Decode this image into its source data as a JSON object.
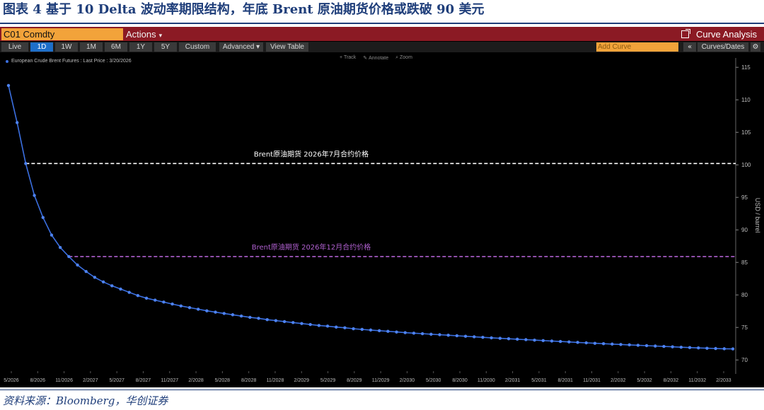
{
  "figure": {
    "title": "图表 4 基于 10 Delta 波动率期限结构，年底 Brent 原油期货价格或跌破 90 美元",
    "source": "资料来源：Bloomberg，华创证券"
  },
  "toolbar": {
    "ticker": "C01 Comdty",
    "actions_label": "Actions",
    "panel_title": "Curve Analysis",
    "tabs": [
      "Live",
      "1D",
      "1W",
      "1M",
      "6M",
      "1Y",
      "5Y",
      "Custom",
      "Advanced",
      "View Table"
    ],
    "active_tab": "1D",
    "add_curve_placeholder": "Add Curve",
    "curves_dates_label": "Curves/Dates",
    "chart_tools": [
      "Track",
      "Annotate",
      "Zoom"
    ]
  },
  "colors": {
    "header_bar": "#8b1a24",
    "ticker_bg": "#f2a33a",
    "active_tab": "#1e6fc8",
    "series": "#3b6fe0",
    "jul_line": "#ffffff",
    "dec_line": "#b060d0",
    "background": "#000000"
  },
  "chart_data": {
    "type": "line",
    "legend_label": "European Crude Brent Futures : Last Price : 3/20/2026",
    "ylabel": "USD / barrel",
    "ylim": [
      68.5,
      116
    ],
    "yticks": [
      70,
      75,
      80,
      85,
      90,
      95,
      100,
      105,
      110,
      115
    ],
    "xticks": [
      "5/2026",
      "8/2026",
      "11/2026",
      "2/2027",
      "5/2027",
      "8/2027",
      "11/2027",
      "2/2028",
      "5/2028",
      "8/2028",
      "11/2028",
      "2/2029",
      "5/2029",
      "8/2029",
      "11/2029",
      "2/2030",
      "5/2030",
      "8/2030",
      "11/2030",
      "2/2031",
      "5/2031",
      "8/2031",
      "11/2031",
      "2/2032",
      "5/2032",
      "8/2032",
      "11/2032",
      "2/2033"
    ],
    "series": [
      {
        "values": [
          112.2,
          106.5,
          100.2,
          95.3,
          91.9,
          89.2,
          87.3,
          85.9,
          84.6,
          83.6,
          82.7,
          82.0,
          81.4,
          80.9,
          80.4,
          79.9,
          79.5,
          79.2,
          78.9,
          78.6,
          78.3,
          78.05,
          77.8,
          77.55,
          77.35,
          77.15,
          76.95,
          76.75,
          76.55,
          76.4,
          76.2,
          76.05,
          75.9,
          75.75,
          75.6,
          75.45,
          75.3,
          75.2,
          75.05,
          74.95,
          74.8,
          74.7,
          74.6,
          74.5,
          74.4,
          74.3,
          74.2,
          74.12,
          74.04,
          73.96,
          73.88,
          73.8,
          73.72,
          73.64,
          73.56,
          73.48,
          73.4,
          73.33,
          73.26,
          73.19,
          73.12,
          73.05,
          72.98,
          72.91,
          72.84,
          72.77,
          72.7,
          72.63,
          72.56,
          72.5,
          72.44,
          72.38,
          72.32,
          72.26,
          72.2,
          72.14,
          72.08,
          72.02,
          71.96,
          71.9,
          71.85,
          71.8,
          71.76,
          71.72,
          71.7
        ]
      }
    ],
    "reference_lines": [
      {
        "label": "Brent原油期货 2026年7月合约价格",
        "value": 100.2,
        "style": "dashed",
        "color": "#ffffff"
      },
      {
        "label": "Brent原油期货 2026年12月合约价格",
        "value": 85.9,
        "style": "dashed",
        "color": "#b060d0"
      }
    ]
  }
}
